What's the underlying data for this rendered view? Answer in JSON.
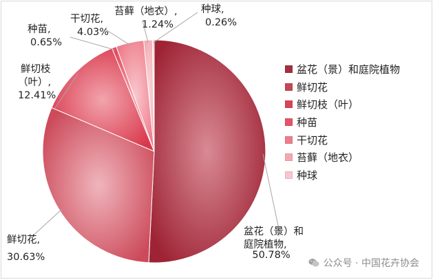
{
  "chart_data": {
    "type": "pie",
    "title": "",
    "categories": [
      "盆花（景）和庭院植物",
      "鲜切花",
      "鲜切枝（叶）",
      "种苗",
      "干切花",
      "苔藓（地衣）",
      "种球"
    ],
    "values": [
      50.78,
      30.63,
      12.41,
      0.65,
      4.03,
      1.24,
      0.26
    ],
    "value_labels": [
      "50.78%",
      "30.63%",
      "12.41%",
      "0.65%",
      "4.03%",
      "1.24%",
      "0.26%"
    ],
    "colors": [
      "#a3303d",
      "#c44754",
      "#d94558",
      "#e45367",
      "#ee7c8a",
      "#f3a8b1",
      "#f6c7cc"
    ],
    "legend_position": "right"
  },
  "slice_labels": {
    "s0": {
      "name1": "盆花（景）和",
      "name2": "庭院植物,",
      "pct": "50.78%"
    },
    "s1": {
      "name": "鲜切花,",
      "pct": "30.63%"
    },
    "s2": {
      "name1": "鲜切枝",
      "name2": "（叶）,",
      "pct": "12.41%"
    },
    "s3": {
      "name": "种苗,",
      "pct": "0.65%"
    },
    "s4": {
      "name": "干切花,",
      "pct": "4.03%"
    },
    "s5": {
      "name": "苔藓（地衣）,",
      "pct": "1.24%"
    },
    "s6": {
      "name": "种球,",
      "pct": "0.26%"
    }
  },
  "watermark": {
    "text": "公众号 · 中国花卉协会"
  }
}
